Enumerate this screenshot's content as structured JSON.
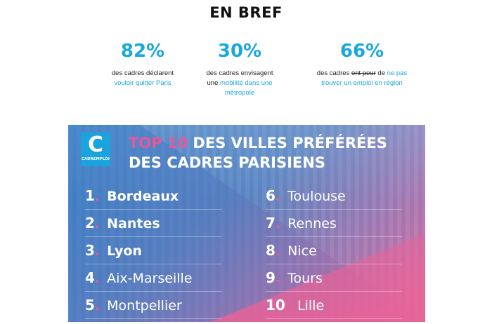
{
  "header": {
    "title": "EN BREF"
  },
  "stats": [
    {
      "value": "82%",
      "line1": "des cadres déclarent",
      "line2": "vouloir quitter Paris"
    },
    {
      "value": "30%",
      "line1": "des cadres envisagent",
      "line2a": "une ",
      "line2b": "mobilité dans une",
      "line3": "métropole"
    },
    {
      "value": "66%",
      "line1a": "des cadres ",
      "line1b": "ont peur",
      "line1c": " de ",
      "line1d": "ne pas",
      "line2": "trouver un emploi en région"
    }
  ],
  "banner": {
    "logo_letter": "C",
    "logo_brand": "CADREMPLOI",
    "headline_top10": "TOP 10",
    "headline_line1": " DES VILLES PRÉFÉRÉES",
    "headline_line2": "DES CADRES PARISIENS",
    "colors": {
      "accent_pink": "#e8579a",
      "accent_blue": "#1aa3dc"
    },
    "ranking_left": [
      {
        "num": "1",
        "city": "Bordeaux"
      },
      {
        "num": "2",
        "city": "Nantes"
      },
      {
        "num": "3",
        "city": "Lyon"
      },
      {
        "num": "4",
        "city": "Aix-Marseille"
      },
      {
        "num": "5",
        "city": "Montpellier"
      }
    ],
    "ranking_right": [
      {
        "num": "6",
        "city": "Toulouse"
      },
      {
        "num": "7",
        "city": "Rennes"
      },
      {
        "num": "8",
        "city": "Nice"
      },
      {
        "num": "9",
        "city": "Tours"
      },
      {
        "num": "10",
        "city": "Lille"
      }
    ]
  }
}
